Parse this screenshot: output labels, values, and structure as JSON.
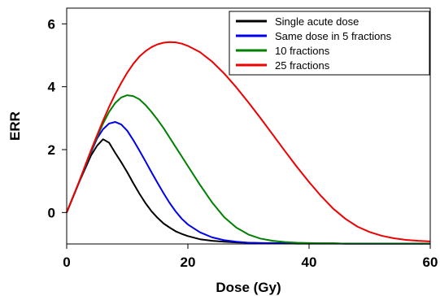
{
  "chart_data": {
    "type": "line",
    "title": "",
    "xlabel": "Dose (Gy)",
    "ylabel": "ERR",
    "xlim": [
      0,
      60
    ],
    "ylim": [
      -1,
      6.5
    ],
    "xticks": [
      0,
      20,
      40,
      60
    ],
    "yticks": [
      0,
      2,
      4,
      6
    ],
    "grid": false,
    "legend_position": "top-right",
    "x": [
      0,
      2,
      4,
      5,
      6,
      7,
      8,
      9,
      10,
      11,
      12,
      13,
      14,
      15,
      16,
      17,
      18,
      19,
      20,
      22,
      24,
      26,
      28,
      30,
      32,
      34,
      36,
      38,
      40,
      42,
      44,
      46,
      48,
      50,
      52,
      54,
      56,
      58,
      60
    ],
    "series": [
      {
        "name": "Single acute dose",
        "color": "#000000",
        "values": [
          0,
          0.94,
          1.81,
          2.12,
          2.33,
          2.22,
          1.9,
          1.6,
          1.28,
          0.93,
          0.6,
          0.3,
          0.04,
          -0.17,
          -0.35,
          -0.48,
          -0.6,
          -0.68,
          -0.75,
          -0.85,
          -0.9,
          -0.93,
          -0.95,
          -0.96,
          -0.97,
          -0.97,
          -0.98,
          -0.98,
          -0.98,
          -0.98,
          -0.98,
          -0.99,
          -0.99,
          -0.99,
          -0.99,
          -0.99,
          -0.99,
          -0.99,
          -0.99
        ]
      },
      {
        "name": "Same dose in 5 fractions",
        "color": "#0000ee",
        "values": [
          0,
          0.94,
          1.9,
          2.35,
          2.65,
          2.83,
          2.88,
          2.8,
          2.6,
          2.3,
          1.97,
          1.63,
          1.28,
          0.94,
          0.61,
          0.3,
          0.03,
          -0.2,
          -0.38,
          -0.63,
          -0.79,
          -0.88,
          -0.93,
          -0.96,
          -0.97,
          -0.98,
          -0.98,
          -0.99,
          -0.99,
          -0.99,
          -0.99,
          -0.99,
          -0.99,
          -0.99,
          -0.99,
          -0.99,
          -0.99,
          -0.99,
          -0.99
        ]
      },
      {
        "name": "10 fractions",
        "color": "#008000",
        "values": [
          0,
          0.95,
          1.93,
          2.4,
          2.83,
          3.2,
          3.48,
          3.66,
          3.73,
          3.7,
          3.6,
          3.42,
          3.2,
          2.95,
          2.68,
          2.38,
          2.08,
          1.78,
          1.48,
          0.88,
          0.32,
          -0.15,
          -0.48,
          -0.7,
          -0.83,
          -0.9,
          -0.94,
          -0.96,
          -0.97,
          -0.98,
          -0.98,
          -0.99,
          -0.99,
          -0.99,
          -0.99,
          -0.99,
          -0.99,
          -0.99,
          -0.99
        ]
      },
      {
        "name": "25 fractions",
        "color": "#ee0000",
        "values": [
          0,
          0.96,
          1.97,
          2.45,
          2.92,
          3.36,
          3.76,
          4.12,
          4.45,
          4.73,
          4.96,
          5.13,
          5.26,
          5.35,
          5.4,
          5.42,
          5.41,
          5.37,
          5.3,
          5.1,
          4.8,
          4.42,
          3.98,
          3.5,
          3.0,
          2.48,
          1.96,
          1.45,
          0.97,
          0.52,
          0.12,
          -0.2,
          -0.45,
          -0.62,
          -0.74,
          -0.82,
          -0.87,
          -0.9,
          -0.92
        ]
      }
    ]
  }
}
